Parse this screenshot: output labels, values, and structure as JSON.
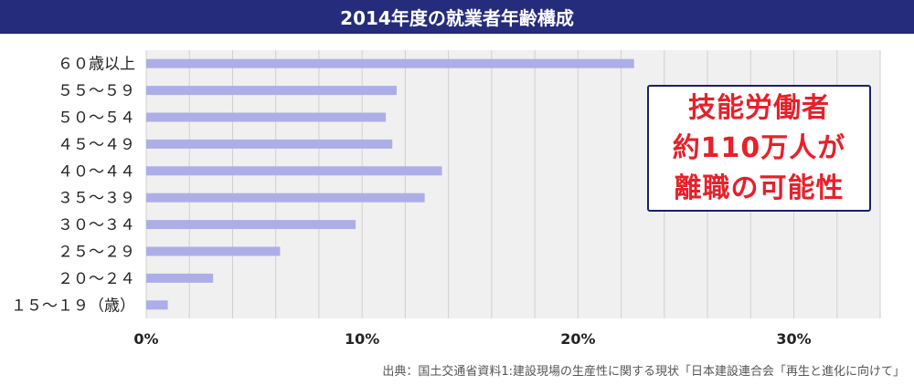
{
  "title": "2014年度の就業者年齢構成",
  "colors": {
    "header_bg": "#252c7c",
    "plot_bg": "#f0f0f0",
    "bar": "#adaee8",
    "grid": "#cfcfcf",
    "callout_text": "#e8202a",
    "callout_border": "#1b1f6b"
  },
  "callout": {
    "lines": [
      "技能労働者",
      "約110万人が",
      "離職の可能性"
    ]
  },
  "source": "出典：国土交通省資料1:建設現場の生産性に関する現状「日本建設連合会「再生と進化に向けて」",
  "chart_data": {
    "type": "bar",
    "orientation": "horizontal",
    "categories": [
      "６０歳以上",
      "５５～５９",
      "５０～５４",
      "４５～４９",
      "４０～４４",
      "３５～３９",
      "３０～３４",
      "２５～２９",
      "２０～２４",
      "１５～１９（歳）"
    ],
    "values": [
      22.6,
      11.6,
      11.1,
      11.4,
      13.7,
      12.9,
      9.7,
      6.2,
      3.1,
      1.0
    ],
    "xlim": [
      0,
      34
    ],
    "xticks": [
      0,
      10,
      20,
      30
    ],
    "xtick_labels": [
      "0%",
      "10%",
      "20%",
      "30%"
    ],
    "minor_grid_step": 2,
    "grid": true
  }
}
